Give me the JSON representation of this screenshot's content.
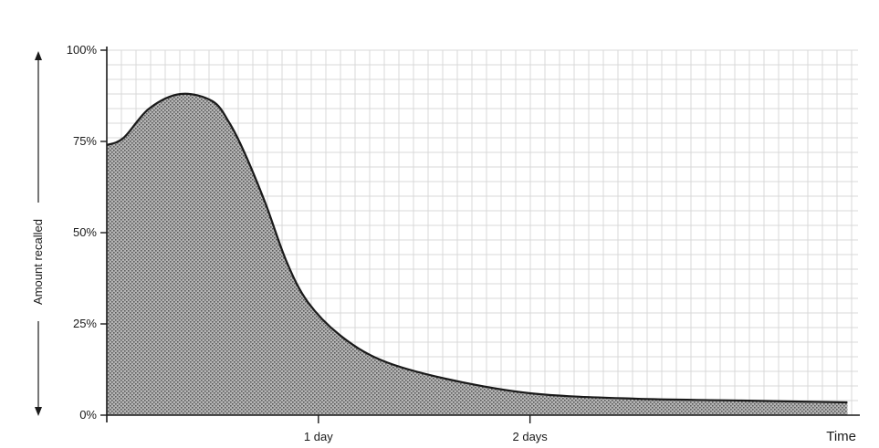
{
  "chart_data": {
    "type": "area",
    "title": "",
    "xlabel": "Time",
    "ylabel": "Amount recalled",
    "x_unit": "days",
    "xlim": [
      0,
      3.55
    ],
    "ylim": [
      0,
      100
    ],
    "y_ticks": [
      {
        "value": 0,
        "label": "0%"
      },
      {
        "value": 25,
        "label": "25%"
      },
      {
        "value": 50,
        "label": "50%"
      },
      {
        "value": 75,
        "label": "75%"
      },
      {
        "value": 100,
        "label": "100%"
      }
    ],
    "x_ticks": [
      {
        "value": 1,
        "label": "1 day"
      },
      {
        "value": 2,
        "label": "2 days"
      }
    ],
    "series": [
      {
        "x": [
          0,
          0.08,
          0.2,
          0.35,
          0.5,
          0.58,
          0.65,
          0.75,
          0.85,
          0.95,
          1.1,
          1.3,
          1.6,
          2.0,
          2.5,
          3.0,
          3.5
        ],
        "y": [
          74,
          76,
          84,
          88,
          86,
          80,
          72,
          58,
          42,
          31,
          22,
          15,
          10,
          6,
          4.5,
          4,
          3.5
        ]
      }
    ],
    "grid": true,
    "colors": {
      "line": "#1a1a1a",
      "fill": "#8a8a8a",
      "grid": "#d9d9d9",
      "axis": "#1a1a1a"
    }
  }
}
